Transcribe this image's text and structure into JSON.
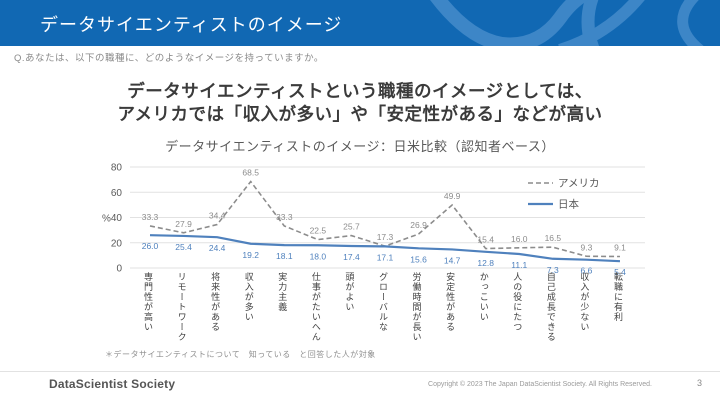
{
  "slide": {
    "header": {
      "title": "データサイエンティストのイメージ"
    },
    "question": "Q.あなたは、以下の職種に、どのようなイメージを持っていますか。",
    "heading_line1": "データサイエンティストという職種のイメージとしては、",
    "heading_line2": "アメリカでは「収入が多い」や「安定性がある」などが高い",
    "footnote": "＊データサイエンティストについて　知っている　と回答した人が対象",
    "footer": {
      "brand": "DataScientist Society",
      "copyright": "Copyright © 2023  The Japan DataScientist Society. All Rights Reserved.",
      "page_number": "3"
    },
    "colors": {
      "header_blue": "#1168b3",
      "decor_blue": "#3d86c7",
      "japan_blue": "#4f81bd",
      "america_gray": "#8c8c8c",
      "gridline": "#e2e2e2"
    }
  },
  "chart_data": {
    "type": "line",
    "title": "データサイエンティストのイメージ：日米比較（認知者ベース）",
    "ylabel": "%",
    "ylim": [
      0,
      80
    ],
    "yticks": [
      0,
      20,
      40,
      60,
      80
    ],
    "grid": true,
    "legend_position": "upper-right",
    "categories": [
      "専門性が高い",
      "リモートワーク",
      "将来性がある",
      "収入が多い",
      "実力主義",
      "仕事がたいへん",
      "頭がよい",
      "グローバルな",
      "労働時間が長い",
      "安定性がある",
      "かっこいい",
      "人の役にたつ",
      "自己成長できる",
      "収入が少ない",
      "転職に有利"
    ],
    "series": [
      {
        "name": "アメリカ",
        "line_style": "dashed",
        "color": "#8c8c8c",
        "values": [
          33.3,
          27.9,
          34.4,
          68.5,
          33.3,
          22.5,
          25.7,
          17.3,
          26.9,
          49.9,
          15.4,
          16.0,
          16.5,
          9.3,
          9.1
        ]
      },
      {
        "name": "日本",
        "line_style": "solid",
        "color": "#4f81bd",
        "values": [
          26.0,
          25.4,
          24.4,
          19.2,
          18.1,
          18.0,
          17.4,
          17.1,
          15.6,
          14.7,
          12.8,
          11.1,
          7.3,
          6.6,
          5.4
        ]
      }
    ]
  }
}
